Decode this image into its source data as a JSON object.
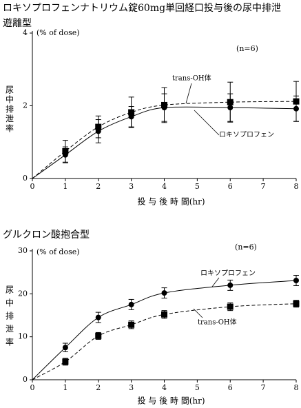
{
  "page_title": "ロキソプロフェンナトリウム錠60mg単回経口投与後の尿中排泄",
  "chart_data": [
    {
      "type": "line",
      "subtitle": "遊離型",
      "unit_label": "(% of dose)",
      "ylabel": "尿中排泄率",
      "xlabel": "投 与 後 時 間(hr)",
      "n_label": "(n=6)",
      "xlim": [
        0,
        8
      ],
      "ylim": [
        0,
        4
      ],
      "xticks": [
        0,
        1,
        2,
        3,
        4,
        5,
        6,
        7,
        8
      ],
      "yticks": [
        0,
        2,
        4
      ],
      "grid": false,
      "series": [
        {
          "name": "ロキソプロフェン",
          "marker": "circle",
          "line": "solid",
          "x": [
            1,
            2,
            3,
            4,
            6,
            8
          ],
          "y": [
            0.65,
            1.3,
            1.7,
            1.95,
            1.95,
            1.92
          ],
          "err": [
            0.22,
            0.32,
            0.28,
            0.38,
            0.38,
            0.35
          ]
        },
        {
          "name": "trans-OH体",
          "marker": "square",
          "line": "dashed",
          "x": [
            1,
            2,
            3,
            4,
            6,
            8
          ],
          "y": [
            0.75,
            1.42,
            1.82,
            2.02,
            2.1,
            2.12
          ],
          "err": [
            0.3,
            0.3,
            0.42,
            0.48,
            0.55,
            0.55
          ]
        }
      ],
      "annotations": [
        {
          "text": "trans-OH体",
          "series": "trans-OH体"
        },
        {
          "text": "ロキソプロフェン",
          "series": "ロキソプロフェン"
        }
      ]
    },
    {
      "type": "line",
      "subtitle": "グルクロン酸抱合型",
      "unit_label": "(% of dose)",
      "ylabel": "尿中排泄率",
      "xlabel": "投 与 後 時 間(hr)",
      "n_label": "(n=6)",
      "xlim": [
        0,
        8
      ],
      "ylim": [
        0,
        30
      ],
      "xticks": [
        0,
        1,
        2,
        3,
        4,
        5,
        6,
        7,
        8
      ],
      "yticks": [
        0,
        10,
        20,
        30
      ],
      "grid": false,
      "series": [
        {
          "name": "ロキソプロフェン",
          "marker": "circle",
          "line": "solid",
          "x": [
            1,
            2,
            3,
            4,
            6,
            8
          ],
          "y": [
            7.5,
            14.5,
            17.5,
            20.2,
            22,
            23.1
          ],
          "err": [
            1.0,
            1.2,
            1.2,
            1.2,
            1.2,
            1.2
          ]
        },
        {
          "name": "trans-OH体",
          "marker": "square",
          "line": "dashed",
          "x": [
            1,
            2,
            3,
            4,
            6,
            8
          ],
          "y": [
            4.2,
            10.2,
            12.8,
            15.2,
            17.0,
            17.7
          ],
          "err": [
            0.8,
            0.8,
            0.9,
            0.9,
            0.9,
            0.8
          ]
        }
      ],
      "annotations": [
        {
          "text": "ロキソプロフェン",
          "series": "ロキソプロフェン"
        },
        {
          "text": "trans-OH体",
          "series": "trans-OH体"
        }
      ]
    }
  ]
}
